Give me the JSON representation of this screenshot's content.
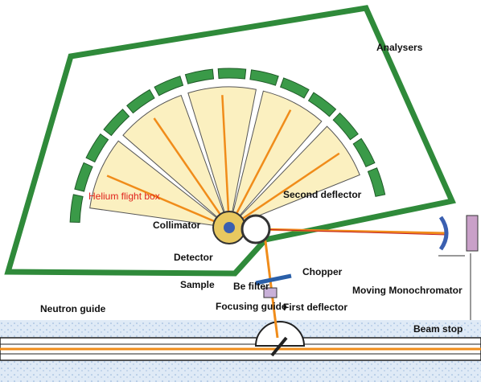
{
  "labels": {
    "analysers": "Analysers",
    "helium_flight_box": "Helium flight box",
    "collimator": "Collimator",
    "second_deflector": "Second deflector",
    "detector": "Detector",
    "sample": "Sample",
    "be_filter": "Be filter",
    "chopper": "Chopper",
    "moving_monochromator": "Moving Monochromator",
    "neutron_guide": "Neutron guide",
    "focusing_guide": "Focusing guide",
    "first_deflector": "First deflector",
    "beam_stop": "Beam stop"
  }
}
